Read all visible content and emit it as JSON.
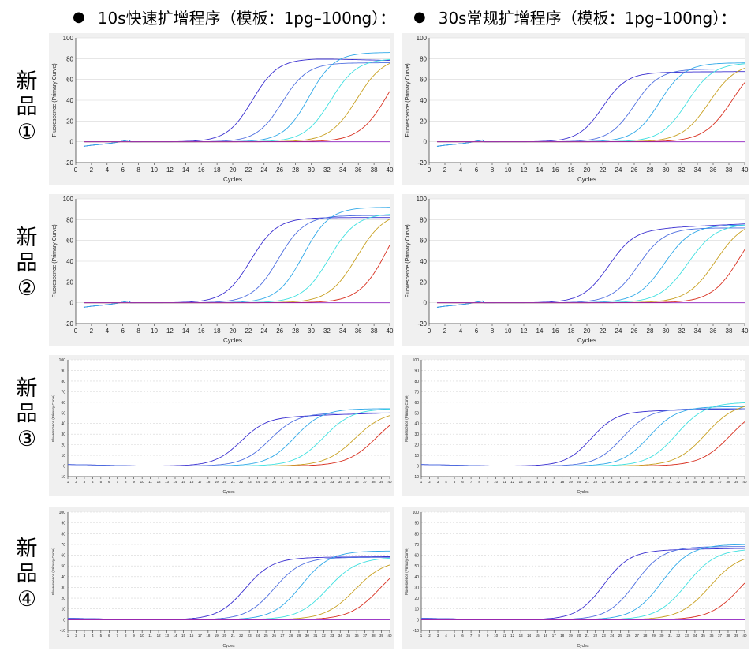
{
  "headers": {
    "left": "10s快速扩增程序（模板：1pg–100ng）：",
    "right": "30s常规扩增程序（模板：1pg–100ng）："
  },
  "rows": [
    {
      "l1": "新",
      "l2": "品",
      "l3": "①"
    },
    {
      "l1": "新",
      "l2": "品",
      "l3": "②"
    },
    {
      "l1": "新",
      "l2": "品",
      "l3": "③"
    },
    {
      "l1": "新",
      "l2": "品",
      "l3": "④"
    }
  ],
  "series_colors": [
    "#3a2fd0",
    "#4f6fe0",
    "#2fa8e8",
    "#3fe0e0",
    "#c8a020",
    "#d83020",
    "#9020c0"
  ],
  "chart_data": [
    {
      "panel": "r1-left",
      "type": "line",
      "style": "A",
      "xlabel": "Cycles",
      "ylabel": "Fluorescence (Primary Curve)",
      "xlim": [
        0,
        40
      ],
      "ylim": [
        -20,
        100
      ],
      "xstep": 2,
      "ystep": 20,
      "x_start": 1,
      "x_end": 40,
      "series": [
        {
          "mid": 22.5,
          "k": 0.62,
          "plateau": 80,
          "droop": -0.6
        },
        {
          "mid": 26.3,
          "k": 0.62,
          "plateau": 76
        },
        {
          "mid": 29.7,
          "k": 0.62,
          "plateau": 86
        },
        {
          "mid": 32.5,
          "k": 0.6,
          "plateau": 80
        },
        {
          "mid": 35.8,
          "k": 0.58,
          "plateau": 82
        },
        {
          "mid": 39.8,
          "k": 0.55,
          "plateau": 92
        },
        {
          "flat": 0
        }
      ]
    },
    {
      "panel": "r1-right",
      "type": "line",
      "style": "A",
      "xlabel": "Cycles",
      "ylabel": "Fluorescence (Primary Curve)",
      "xlim": [
        0,
        40
      ],
      "ylim": [
        -20,
        100
      ],
      "xstep": 2,
      "ystep": 20,
      "x_start": 1,
      "x_end": 40,
      "series": [
        {
          "mid": 22.0,
          "k": 0.65,
          "plateau": 67,
          "rise": 0.05
        },
        {
          "mid": 26.0,
          "k": 0.63,
          "plateau": 70
        },
        {
          "mid": 29.2,
          "k": 0.62,
          "plateau": 76
        },
        {
          "mid": 32.7,
          "k": 0.6,
          "plateau": 76
        },
        {
          "mid": 35.5,
          "k": 0.58,
          "plateau": 76
        },
        {
          "mid": 38.5,
          "k": 0.55,
          "plateau": 82
        },
        {
          "flat": 0
        }
      ]
    },
    {
      "panel": "r2-left",
      "type": "line",
      "style": "A",
      "xlabel": "Cycles",
      "ylabel": "Fluorescence (Primary Curve)",
      "xlim": [
        0,
        40
      ],
      "ylim": [
        -20,
        100
      ],
      "xstep": 2,
      "ystep": 20,
      "x_start": 1,
      "x_end": 40,
      "series": [
        {
          "mid": 22.3,
          "k": 0.6,
          "plateau": 82
        },
        {
          "mid": 25.8,
          "k": 0.6,
          "plateau": 84
        },
        {
          "mid": 29.0,
          "k": 0.6,
          "plateau": 92
        },
        {
          "mid": 32.3,
          "k": 0.58,
          "plateau": 86
        },
        {
          "mid": 35.8,
          "k": 0.56,
          "plateau": 88
        },
        {
          "mid": 39.8,
          "k": 0.55,
          "plateau": 105
        },
        {
          "flat": 0
        }
      ]
    },
    {
      "panel": "r2-right",
      "type": "line",
      "style": "A",
      "xlabel": "Cycles",
      "ylabel": "Fluorescence (Primary Curve)",
      "xlim": [
        0,
        40
      ],
      "ylim": [
        -20,
        100
      ],
      "xstep": 2,
      "ystep": 20,
      "x_start": 1,
      "x_end": 40,
      "series": [
        {
          "mid": 22.8,
          "k": 0.6,
          "plateau": 72,
          "rise": 0.35
        },
        {
          "mid": 26.5,
          "k": 0.6,
          "plateau": 72
        },
        {
          "mid": 29.8,
          "k": 0.58,
          "plateau": 75
        },
        {
          "mid": 32.8,
          "k": 0.56,
          "plateau": 76
        },
        {
          "mid": 36.3,
          "k": 0.55,
          "plateau": 80
        },
        {
          "mid": 39.5,
          "k": 0.55,
          "plateau": 90
        },
        {
          "flat": 0
        }
      ]
    },
    {
      "panel": "r3-left",
      "type": "line",
      "style": "B",
      "xlabel": "Cycles",
      "ylabel": "Fluorescence (Primary Curve)",
      "xlim": [
        1,
        40
      ],
      "ylim": [
        -10,
        100
      ],
      "xstep": 1,
      "ystep": 10,
      "x_start": 1,
      "x_end": 40,
      "series": [
        {
          "mid": 22.0,
          "k": 0.62,
          "plateau": 47,
          "rise": 0.25
        },
        {
          "mid": 25.5,
          "k": 0.6,
          "plateau": 50
        },
        {
          "mid": 28.5,
          "k": 0.6,
          "plateau": 54
        },
        {
          "mid": 32.0,
          "k": 0.58,
          "plateau": 54
        },
        {
          "mid": 35.8,
          "k": 0.56,
          "plateau": 52
        },
        {
          "mid": 38.5,
          "k": 0.55,
          "plateau": 55
        },
        {
          "flat": 0
        }
      ]
    },
    {
      "panel": "r3-right",
      "type": "line",
      "style": "B",
      "xlabel": "Cycles",
      "ylabel": "Fluorescence (Primary Curve)",
      "xlim": [
        1,
        40
      ],
      "ylim": [
        -10,
        100
      ],
      "xstep": 1,
      "ystep": 10,
      "x_start": 1,
      "x_end": 40,
      "series": [
        {
          "mid": 21.5,
          "k": 0.65,
          "plateau": 52,
          "rise": 0.15
        },
        {
          "mid": 25.3,
          "k": 0.62,
          "plateau": 54
        },
        {
          "mid": 28.5,
          "k": 0.6,
          "plateau": 56
        },
        {
          "mid": 31.8,
          "k": 0.58,
          "plateau": 60
        },
        {
          "mid": 35.3,
          "k": 0.56,
          "plateau": 60
        },
        {
          "mid": 38.3,
          "k": 0.55,
          "plateau": 58
        },
        {
          "flat": 0
        }
      ]
    },
    {
      "panel": "r4-left",
      "type": "line",
      "style": "B",
      "xlabel": "Cycles",
      "ylabel": "Fluorescence (Primary Curve)",
      "xlim": [
        1,
        40
      ],
      "ylim": [
        -10,
        100
      ],
      "xstep": 1,
      "ystep": 10,
      "x_start": 1,
      "x_end": 40,
      "series": [
        {
          "mid": 22.5,
          "k": 0.6,
          "plateau": 58,
          "rise": 0.05
        },
        {
          "mid": 26.0,
          "k": 0.6,
          "plateau": 58
        },
        {
          "mid": 29.3,
          "k": 0.58,
          "plateau": 64
        },
        {
          "mid": 32.5,
          "k": 0.56,
          "plateau": 58
        },
        {
          "mid": 35.8,
          "k": 0.55,
          "plateau": 56
        },
        {
          "mid": 38.8,
          "k": 0.55,
          "plateau": 58
        },
        {
          "flat": 0
        }
      ]
    },
    {
      "panel": "r4-right",
      "type": "line",
      "style": "B",
      "xlabel": "Cycles",
      "ylabel": "Fluorescence (Primary Curve)",
      "xlim": [
        1,
        40
      ],
      "ylim": [
        -10,
        100
      ],
      "xstep": 1,
      "ystep": 10,
      "x_start": 1,
      "x_end": 40,
      "series": [
        {
          "mid": 23.0,
          "k": 0.62,
          "plateau": 65,
          "rise": 0.12
        },
        {
          "mid": 26.8,
          "k": 0.6,
          "plateau": 68
        },
        {
          "mid": 30.0,
          "k": 0.58,
          "plateau": 70
        },
        {
          "mid": 33.0,
          "k": 0.56,
          "plateau": 66
        },
        {
          "mid": 35.8,
          "k": 0.55,
          "plateau": 62
        },
        {
          "mid": 39.5,
          "k": 0.55,
          "plateau": 60
        },
        {
          "flat": 0
        }
      ]
    }
  ]
}
